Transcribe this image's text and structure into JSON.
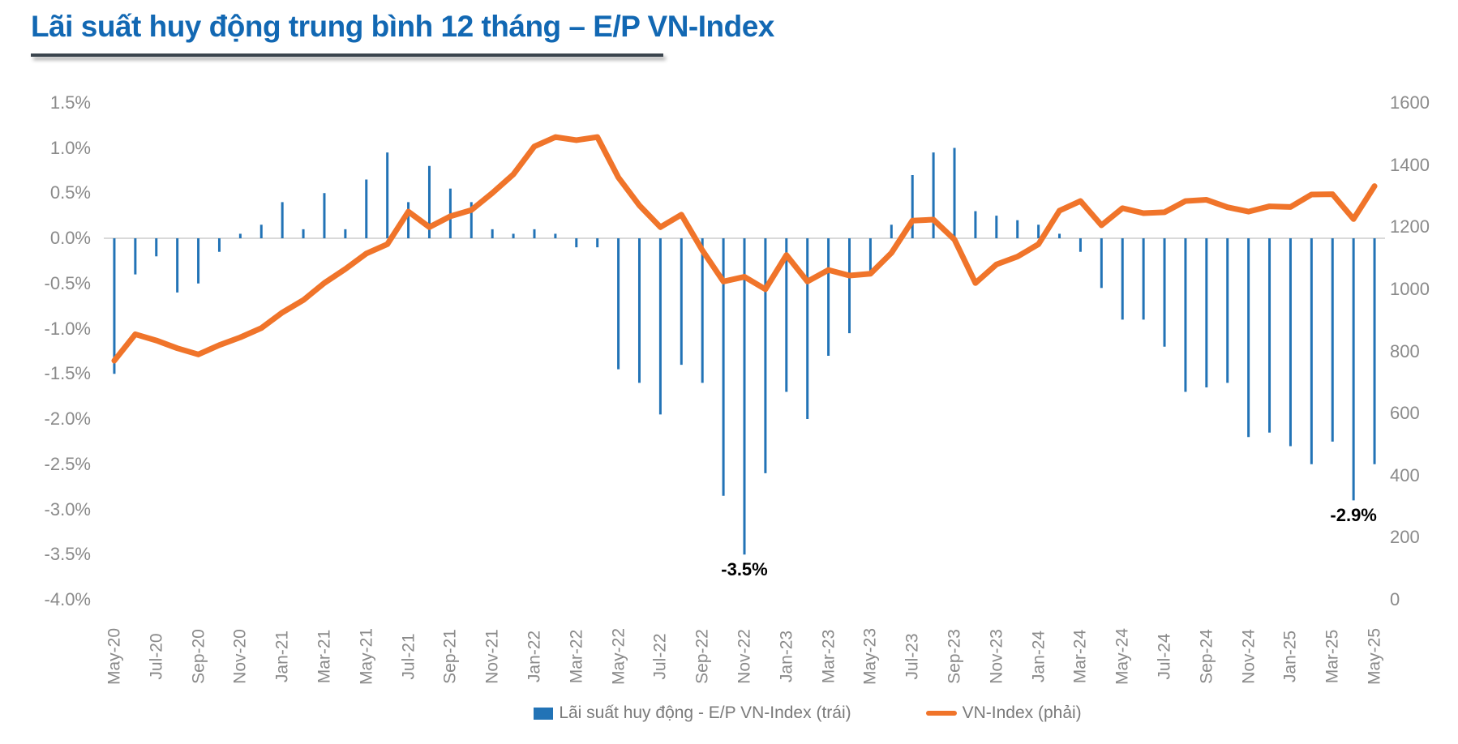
{
  "title": "Lãi suất huy động trung bình 12 tháng – E/P VN-Index",
  "colors": {
    "title": "#1268b3",
    "bar": "#2273b6",
    "line": "#f0742a",
    "axis_text": "#8a8a8a",
    "legend_text": "#7a7a7a",
    "gridline": "#d9d9d9",
    "annotation": "#000000",
    "underline": "#3a444d"
  },
  "legend": {
    "items": [
      {
        "label": "Lãi suất huy động - E/P VN-Index (trái)",
        "swatch": "bar"
      },
      {
        "label": "VN-Index (phải)",
        "swatch": "line"
      }
    ]
  },
  "chart_data": {
    "type": "bar+line",
    "title": "Lãi suất huy động trung bình 12 tháng – E/P VN-Index",
    "grid": "zero-line-only",
    "legend_position": "bottom",
    "categories": [
      "May-20",
      "Jun-20",
      "Jul-20",
      "Aug-20",
      "Sep-20",
      "Oct-20",
      "Nov-20",
      "Dec-20",
      "Jan-21",
      "Feb-21",
      "Mar-21",
      "Apr-21",
      "May-21",
      "Jun-21",
      "Jul-21",
      "Aug-21",
      "Sep-21",
      "Oct-21",
      "Nov-21",
      "Dec-21",
      "Jan-22",
      "Feb-22",
      "Mar-22",
      "Apr-22",
      "May-22",
      "Jun-22",
      "Jul-22",
      "Aug-22",
      "Sep-22",
      "Oct-22",
      "Nov-22",
      "Dec-22",
      "Jan-23",
      "Feb-23",
      "Mar-23",
      "Apr-23",
      "May-23",
      "Jun-23",
      "Jul-23",
      "Aug-23",
      "Sep-23",
      "Oct-23",
      "Nov-23",
      "Dec-23",
      "Jan-24",
      "Feb-24",
      "Mar-24",
      "Apr-24",
      "May-24",
      "Jun-24",
      "Jul-24",
      "Aug-24",
      "Sep-24",
      "Oct-24",
      "Nov-24",
      "Dec-24",
      "Jan-25",
      "Feb-25",
      "Mar-25",
      "Apr-25",
      "May-25"
    ],
    "series": [
      {
        "name": "Lãi suất huy động - E/P VN-Index (trái)",
        "type": "bar",
        "axis": "left",
        "unit": "%",
        "values": [
          -1.5,
          -0.4,
          -0.2,
          -0.6,
          -0.5,
          -0.15,
          0.05,
          0.15,
          0.4,
          0.1,
          0.5,
          0.1,
          0.65,
          0.95,
          0.4,
          0.8,
          0.55,
          0.4,
          0.1,
          0.05,
          0.1,
          0.05,
          -0.1,
          -0.1,
          -1.45,
          -1.6,
          -1.95,
          -1.4,
          -1.6,
          -2.85,
          -3.5,
          -2.6,
          -1.7,
          -2.0,
          -1.3,
          -1.05,
          -0.4,
          0.15,
          0.7,
          0.95,
          1.0,
          0.3,
          0.25,
          0.2,
          0.15,
          0.05,
          -0.15,
          -0.55,
          -0.9,
          -0.9,
          -1.2,
          -1.7,
          -1.65,
          -1.6,
          -2.2,
          -2.15,
          -2.3,
          -2.5,
          -2.25,
          -2.9,
          -2.5
        ]
      },
      {
        "name": "VN-Index (phải)",
        "type": "line",
        "axis": "right",
        "values": [
          770,
          855,
          835,
          810,
          790,
          820,
          845,
          875,
          925,
          965,
          1020,
          1065,
          1115,
          1145,
          1250,
          1200,
          1235,
          1255,
          1310,
          1370,
          1460,
          1490,
          1480,
          1490,
          1360,
          1270,
          1200,
          1240,
          1125,
          1025,
          1040,
          1000,
          1110,
          1025,
          1062,
          1044,
          1050,
          1117,
          1221,
          1224,
          1160,
          1020,
          1080,
          1105,
          1145,
          1253,
          1284,
          1206,
          1261,
          1245,
          1248,
          1284,
          1288,
          1264,
          1250,
          1267,
          1265,
          1305,
          1306,
          1226,
          1332
        ]
      }
    ],
    "left_axis": {
      "ticks": [
        "1.5%",
        "1.0%",
        "0.5%",
        "0.0%",
        "-0.5%",
        "-1.0%",
        "-1.5%",
        "-2.0%",
        "-2.5%",
        "-3.0%",
        "-3.5%",
        "-4.0%"
      ],
      "min": -4.0,
      "max": 1.5
    },
    "right_axis": {
      "ticks": [
        "1600",
        "1400",
        "1200",
        "1000",
        "800",
        "600",
        "400",
        "200",
        "0"
      ],
      "min": 0,
      "max": 1600
    },
    "x_ticks": [
      "May-20",
      "Jul-20",
      "Sep-20",
      "Nov-20",
      "Jan-21",
      "Mar-21",
      "May-21",
      "Jul-21",
      "Sep-21",
      "Nov-21",
      "Jan-22",
      "Mar-22",
      "May-22",
      "Jul-22",
      "Sep-22",
      "Nov-22",
      "Jan-23",
      "Mar-23",
      "May-23",
      "Jul-23",
      "Sep-23",
      "Nov-23",
      "Jan-24",
      "Mar-24",
      "May-24",
      "Jul-24",
      "Sep-24",
      "Nov-24",
      "Jan-25",
      "Mar-25",
      "May-25"
    ],
    "annotations": [
      {
        "month": "Nov-22",
        "text": "-3.5%"
      },
      {
        "month": "Apr-25",
        "text": "-2.9%"
      }
    ]
  }
}
